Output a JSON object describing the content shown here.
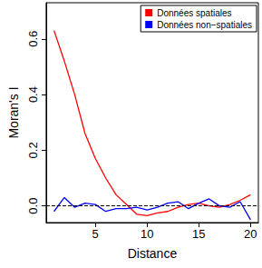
{
  "chart_data": {
    "type": "line",
    "x_label": "Distance",
    "y_label": "Moran's I",
    "x": [
      1,
      2,
      3,
      4,
      5,
      6,
      7,
      8,
      9,
      10,
      11,
      12,
      13,
      14,
      15,
      16,
      17,
      18,
      19,
      20
    ],
    "series": [
      {
        "name": "Données spatiales",
        "color": "#ff0000",
        "values": [
          0.63,
          0.52,
          0.4,
          0.26,
          0.17,
          0.1,
          0.04,
          0.005,
          -0.03,
          -0.035,
          -0.025,
          -0.02,
          -0.005,
          0.005,
          0.01,
          0.0,
          -0.005,
          0.005,
          0.02,
          0.04
        ]
      },
      {
        "name": "Données non−spatiales",
        "color": "#0000ff",
        "values": [
          -0.02,
          0.03,
          -0.005,
          0.01,
          0.005,
          -0.02,
          -0.01,
          -0.01,
          -0.005,
          -0.015,
          -0.005,
          0.01,
          0.015,
          -0.01,
          0.01,
          0.025,
          0.0,
          -0.005,
          0.015,
          -0.05
        ]
      }
    ],
    "hline": 0,
    "xlim": [
      0.24,
      20.76
    ],
    "xticks": [
      5,
      10,
      15,
      20
    ],
    "ylim": [
      -0.06,
      0.73
    ],
    "yticks": [
      {
        "value": 0,
        "label": "0.0"
      },
      {
        "value": 0.2,
        "label": "0.2"
      },
      {
        "value": 0.4,
        "label": "0.4"
      },
      {
        "value": 0.6,
        "label": "0.6"
      }
    ],
    "legend": "top-right",
    "grid": false
  }
}
